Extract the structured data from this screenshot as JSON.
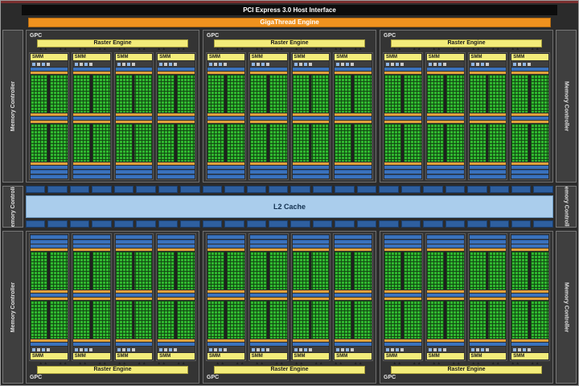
{
  "labels": {
    "pci": "PCI Express 3.0 Host Interface",
    "gigathread": "GigaThread Engine",
    "gpc": "GPC",
    "raster": "Raster Engine",
    "smm": "SMM",
    "l2": "L2 Cache",
    "memory_controller": "Memory Controller"
  },
  "layout_counts": {
    "gpc_rows": 2,
    "gpcs_per_row": 3,
    "smms_per_gpc": 4,
    "memory_controllers_per_side": 3,
    "l2_slices_per_row": 24
  },
  "colors": {
    "background": "#2b2b2b",
    "top_strip_red": "#7a2f2f",
    "pci_bar_black": "#0c0c0c",
    "gigathread_orange": "#f0921e",
    "raster_yellow": "#f3ec7a",
    "smm_yellow": "#f3ec7a",
    "core_green": "#2fb62f",
    "scheduler_orange": "#dfa13c",
    "texture_blue": "#3a72bd",
    "l2_light_blue": "#aacdec",
    "l2_slice_blue": "#2e5f9f",
    "memory_controller_gray": "#3f3f3f"
  }
}
